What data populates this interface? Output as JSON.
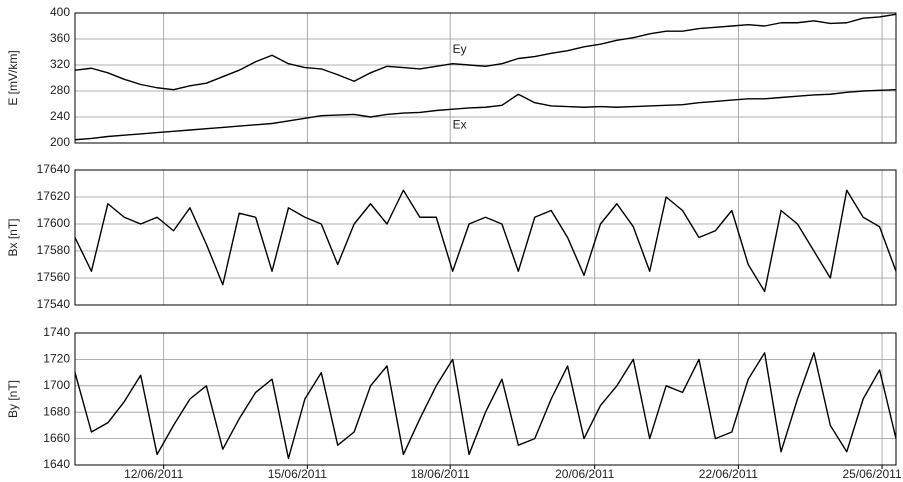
{
  "chart_data": [
    {
      "type": "line",
      "ylabel": "E [mV/km]",
      "x": [
        0,
        2,
        4,
        6,
        8,
        10,
        12,
        14,
        16,
        18,
        20,
        22,
        24,
        26,
        28,
        30,
        32,
        34,
        36,
        38,
        40,
        42,
        44,
        46,
        48,
        50,
        52,
        54,
        56,
        58,
        60,
        62,
        64,
        66,
        68,
        70,
        72,
        74,
        76,
        78,
        80,
        82,
        84,
        86,
        88,
        90,
        92,
        94,
        96,
        98,
        100
      ],
      "series": [
        {
          "name": "Ey",
          "color": "#000000",
          "values": [
            312,
            315,
            308,
            298,
            290,
            285,
            282,
            288,
            292,
            302,
            312,
            325,
            335,
            322,
            316,
            314,
            305,
            295,
            308,
            318,
            316,
            314,
            318,
            322,
            320,
            318,
            322,
            330,
            333,
            338,
            342,
            348,
            352,
            358,
            362,
            368,
            372,
            372,
            376,
            378,
            380,
            382,
            380,
            385,
            385,
            388,
            384,
            385,
            392,
            394,
            398
          ]
        },
        {
          "name": "Ex",
          "color": "#000000",
          "values": [
            205,
            207,
            210,
            212,
            214,
            216,
            218,
            220,
            222,
            224,
            226,
            228,
            230,
            234,
            238,
            242,
            243,
            244,
            240,
            244,
            246,
            247,
            250,
            252,
            254,
            255,
            258,
            275,
            262,
            257,
            256,
            255,
            256,
            255,
            256,
            257,
            258,
            259,
            262,
            264,
            266,
            268,
            268,
            270,
            272,
            274,
            275,
            278,
            280,
            281,
            282
          ]
        }
      ],
      "xlim": [
        0,
        100
      ],
      "ylim": [
        200,
        400
      ],
      "yticks": [
        200,
        240,
        280,
        320,
        360,
        400
      ],
      "grid": true
    },
    {
      "type": "line",
      "ylabel": "Bx [nT]",
      "color": "#000000",
      "x": [
        0,
        2,
        4,
        6,
        8,
        10,
        12,
        14,
        16,
        18,
        20,
        22,
        24,
        26,
        28,
        30,
        32,
        34,
        36,
        38,
        40,
        42,
        44,
        46,
        48,
        50,
        52,
        54,
        56,
        58,
        60,
        62,
        64,
        66,
        68,
        70,
        72,
        74,
        76,
        78,
        80,
        82,
        84,
        86,
        88,
        90,
        92,
        94,
        96,
        98,
        100
      ],
      "values": [
        17590,
        17565,
        17615,
        17605,
        17600,
        17605,
        17595,
        17612,
        17585,
        17555,
        17608,
        17605,
        17565,
        17612,
        17605,
        17600,
        17570,
        17600,
        17615,
        17600,
        17625,
        17605,
        17605,
        17565,
        17600,
        17605,
        17600,
        17565,
        17605,
        17610,
        17590,
        17562,
        17600,
        17615,
        17598,
        17565,
        17620,
        17610,
        17590,
        17595,
        17610,
        17570,
        17550,
        17610,
        17600,
        17580,
        17560,
        17625,
        17605,
        17598,
        17565
      ],
      "xlim": [
        0,
        100
      ],
      "ylim": [
        17540,
        17640
      ],
      "yticks": [
        17540,
        17560,
        17580,
        17600,
        17620,
        17640
      ],
      "grid": true
    },
    {
      "type": "line",
      "ylabel": "By [nT]",
      "color": "#000000",
      "x": [
        0,
        2,
        4,
        6,
        8,
        10,
        12,
        14,
        16,
        18,
        20,
        22,
        24,
        26,
        28,
        30,
        32,
        34,
        36,
        38,
        40,
        42,
        44,
        46,
        48,
        50,
        52,
        54,
        56,
        58,
        60,
        62,
        64,
        66,
        68,
        70,
        72,
        74,
        76,
        78,
        80,
        82,
        84,
        86,
        88,
        90,
        92,
        94,
        96,
        98,
        100
      ],
      "values": [
        1710,
        1665,
        1672,
        1688,
        1708,
        1648,
        1670,
        1690,
        1700,
        1652,
        1675,
        1695,
        1705,
        1645,
        1690,
        1710,
        1655,
        1665,
        1700,
        1715,
        1648,
        1675,
        1700,
        1720,
        1648,
        1680,
        1705,
        1655,
        1660,
        1690,
        1715,
        1660,
        1685,
        1700,
        1720,
        1660,
        1700,
        1695,
        1720,
        1660,
        1665,
        1705,
        1725,
        1650,
        1690,
        1725,
        1670,
        1650,
        1690,
        1712,
        1660
      ],
      "xlim": [
        0,
        100
      ],
      "ylim": [
        1640,
        1740
      ],
      "yticks": [
        1640,
        1660,
        1680,
        1700,
        1720,
        1740
      ],
      "grid": true,
      "xticks": [
        {
          "value": 10.8,
          "label": "12/06/2011"
        },
        {
          "value": 28.3,
          "label": "15/06/2011"
        },
        {
          "value": 45.7,
          "label": "18/06/2011"
        },
        {
          "value": 63.3,
          "label": "20/06/2011"
        },
        {
          "value": 80.8,
          "label": "22/06/2011"
        },
        {
          "value": 98.3,
          "label": "25/06/2011"
        }
      ]
    }
  ]
}
